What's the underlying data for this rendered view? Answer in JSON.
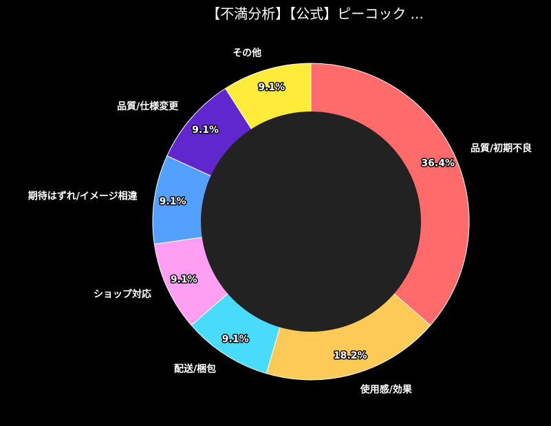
{
  "chart_data": {
    "type": "pie",
    "donut": true,
    "title": "【不満分析】【公式】ピーコック ...",
    "start_angle": "top",
    "direction": "clockwise",
    "slices": [
      {
        "label": "品質/初期不良",
        "value": 36.4,
        "pct_label": "36.4%",
        "color": "#ff6b6b"
      },
      {
        "label": "使用感/効果",
        "value": 18.2,
        "pct_label": "18.2%",
        "color": "#feca57"
      },
      {
        "label": "配送/梱包",
        "value": 9.1,
        "pct_label": "9.1%",
        "color": "#48dbfb"
      },
      {
        "label": "ショップ対応",
        "value": 9.1,
        "pct_label": "9.1%",
        "color": "#ff9ff3"
      },
      {
        "label": "期待はずれ/イメージ相違",
        "value": 9.1,
        "pct_label": "9.1%",
        "color": "#54a0ff"
      },
      {
        "label": "品質/仕様変更",
        "value": 9.1,
        "pct_label": "9.1%",
        "color": "#5f27cd"
      },
      {
        "label": "その他",
        "value": 9.1,
        "pct_label": "9.1%",
        "color": "#feeb3a"
      }
    ],
    "hole_color": "#222222",
    "background": "#000000",
    "text_color": "#ffffff"
  }
}
